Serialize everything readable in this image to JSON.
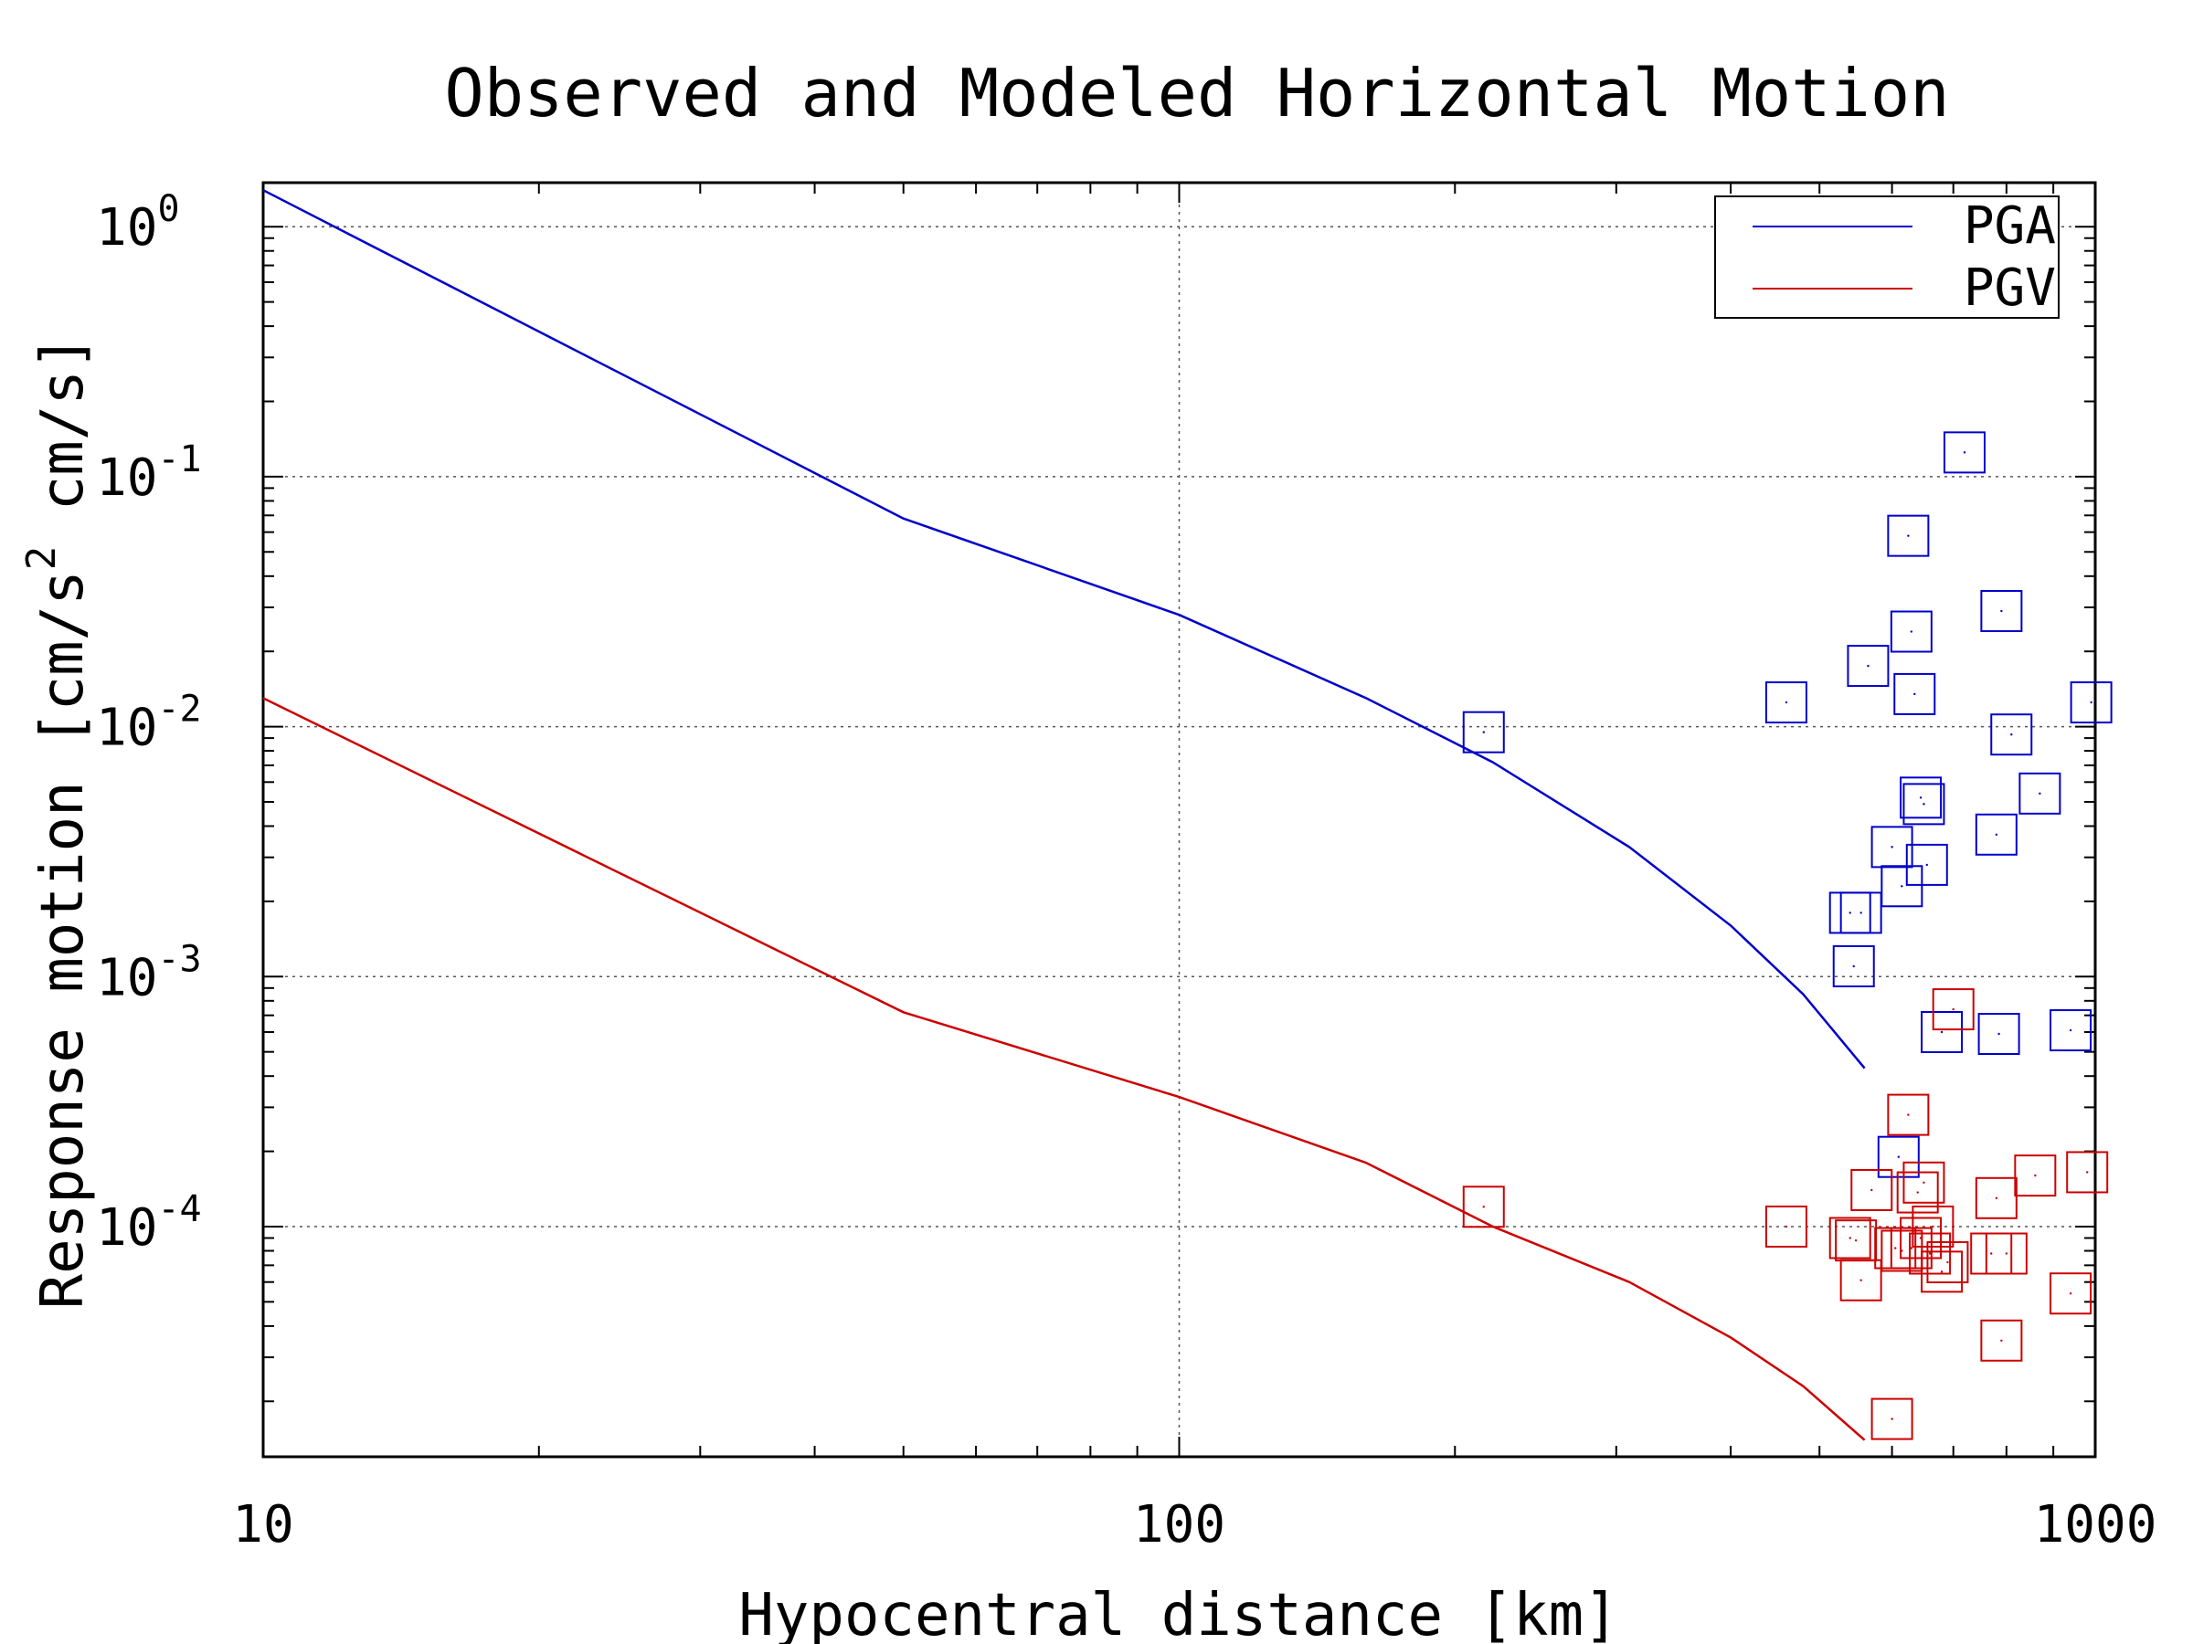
{
  "chart_data": {
    "type": "line",
    "title": "Observed and Modeled Horizontal Motion",
    "xlabel": "Hypocentral distance [km]",
    "ylabel_main": "Response motion  [cm/s",
    "ylabel_sup": "2",
    "ylabel_tail": "  cm/s]",
    "x_scale": "log",
    "y_scale": "log",
    "xlim": [
      10,
      1000
    ],
    "ylim": [
      1.2e-05,
      1.5
    ],
    "x_ticks": [
      {
        "value": 10,
        "label": "10"
      },
      {
        "value": 100,
        "label": "100"
      },
      {
        "value": 1000,
        "label": "1000"
      }
    ],
    "y_ticks": [
      {
        "value": 1,
        "base": "10",
        "exp": "0"
      },
      {
        "value": 0.1,
        "base": "10",
        "exp": "-1"
      },
      {
        "value": 0.01,
        "base": "10",
        "exp": "-2"
      },
      {
        "value": 0.001,
        "base": "10",
        "exp": "-3"
      },
      {
        "value": 0.0001,
        "base": "10",
        "exp": "-4"
      }
    ],
    "grid": true,
    "legend_position": "top-right",
    "series": [
      {
        "name": "PGA",
        "color": "#0000cc",
        "kind": "model",
        "points": [
          [
            10,
            1.4
          ],
          [
            50,
            0.068
          ],
          [
            100,
            0.028
          ],
          [
            160,
            0.013
          ],
          [
            220,
            0.0072
          ],
          [
            310,
            0.0033
          ],
          [
            400,
            0.0016
          ],
          [
            480,
            0.00085
          ],
          [
            560,
            0.00043
          ]
        ]
      },
      {
        "name": "PGV",
        "color": "#cc0000",
        "kind": "model",
        "points": [
          [
            10,
            0.013
          ],
          [
            50,
            0.00072
          ],
          [
            100,
            0.00033
          ],
          [
            160,
            0.00018
          ],
          [
            220,
            0.0001
          ],
          [
            310,
            6e-05
          ],
          [
            400,
            3.6e-05
          ],
          [
            480,
            2.3e-05
          ],
          [
            560,
            1.4e-05
          ]
        ]
      }
    ],
    "observed": [
      {
        "color": "#0000cc",
        "points": [
          [
            215,
            0.0095
          ],
          [
            460,
            0.0125
          ],
          [
            540,
            0.0018
          ],
          [
            545,
            0.0011
          ],
          [
            555,
            0.0018
          ],
          [
            565,
            0.0175
          ],
          [
            600,
            0.0033
          ],
          [
            610,
            0.00019
          ],
          [
            615,
            0.0023
          ],
          [
            625,
            0.058
          ],
          [
            630,
            0.024
          ],
          [
            635,
            0.0135
          ],
          [
            645,
            0.0052
          ],
          [
            650,
            0.0049
          ],
          [
            655,
            0.0028
          ],
          [
            680,
            0.0006
          ],
          [
            720,
            0.125
          ],
          [
            780,
            0.0037
          ],
          [
            785,
            0.00059
          ],
          [
            790,
            0.029
          ],
          [
            810,
            0.0093
          ],
          [
            870,
            0.0054
          ],
          [
            940,
            0.00061
          ],
          [
            990,
            0.0125
          ]
        ]
      },
      {
        "color": "#cc0000",
        "points": [
          [
            215,
            0.00012
          ],
          [
            460,
            0.0001
          ],
          [
            540,
            9e-05
          ],
          [
            548,
            8.8e-05
          ],
          [
            555,
            6.1e-05
          ],
          [
            570,
            0.00014
          ],
          [
            600,
            1.7e-05
          ],
          [
            605,
            8.2e-05
          ],
          [
            615,
            8e-05
          ],
          [
            625,
            0.00028
          ],
          [
            630,
            8.2e-05
          ],
          [
            640,
            0.000137
          ],
          [
            645,
            9e-05
          ],
          [
            650,
            0.00015
          ],
          [
            660,
            7.8e-05
          ],
          [
            665,
            0.0001
          ],
          [
            680,
            6.6e-05
          ],
          [
            690,
            7.2e-05
          ],
          [
            700,
            0.00074
          ],
          [
            770,
            7.8e-05
          ],
          [
            780,
            0.00013
          ],
          [
            790,
            3.5e-05
          ],
          [
            800,
            7.8e-05
          ],
          [
            860,
            0.00016
          ],
          [
            940,
            5.4e-05
          ],
          [
            980,
            0.000165
          ]
        ]
      }
    ]
  }
}
